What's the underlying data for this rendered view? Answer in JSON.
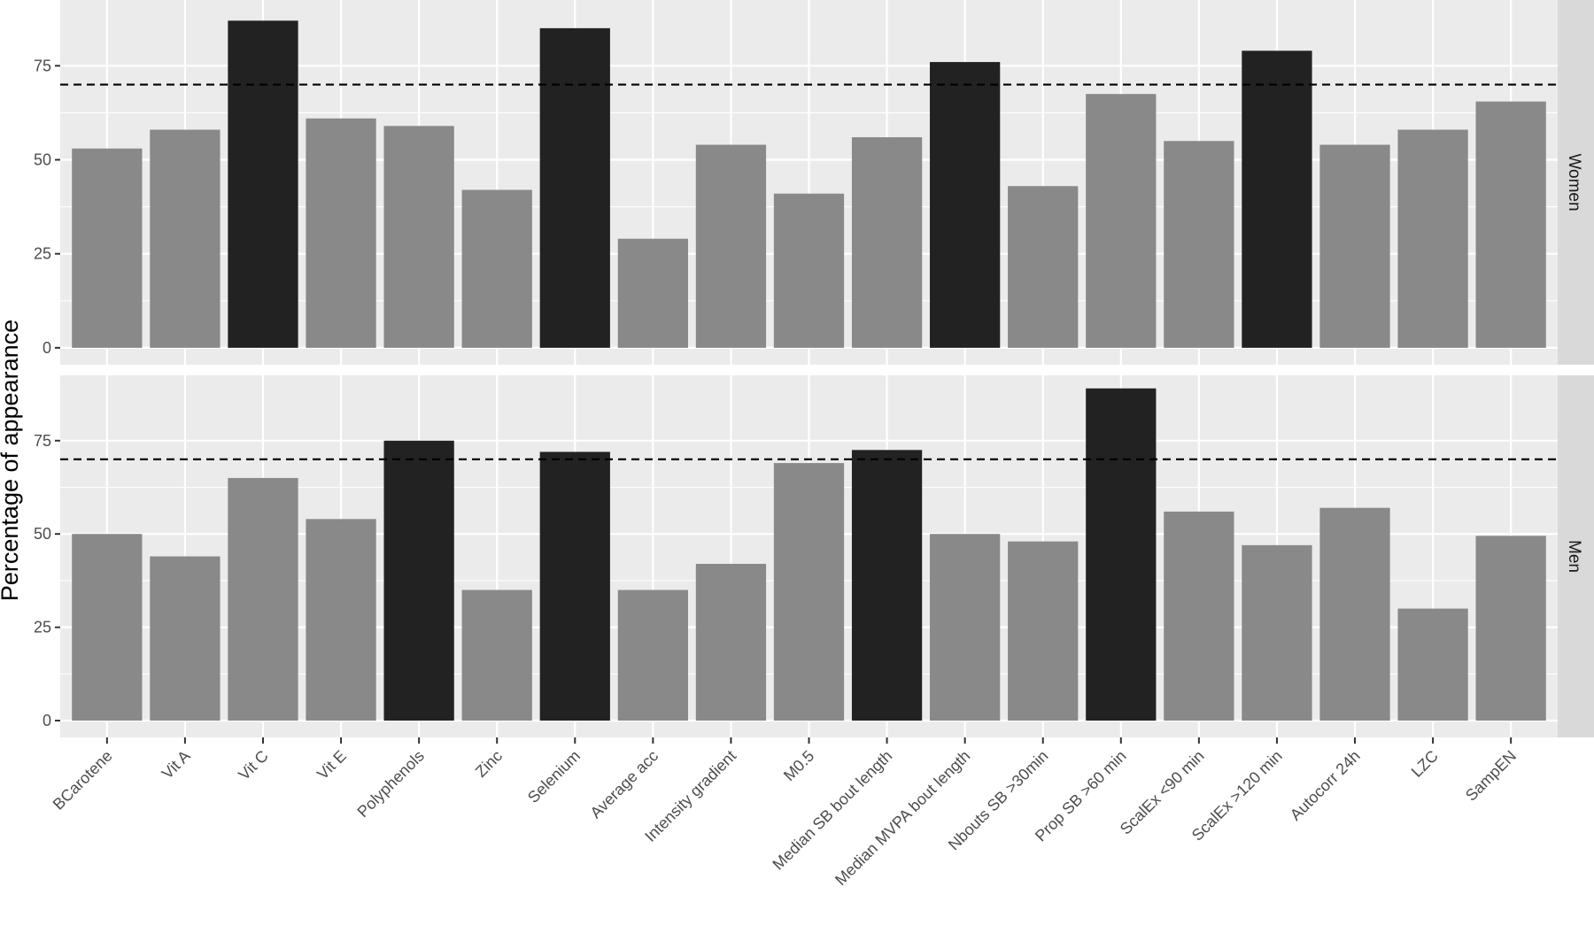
{
  "chart_data": {
    "type": "bar",
    "ylabel": "Percentage of appearance",
    "xlabel": "",
    "ylim": [
      -4.5,
      92.5
    ],
    "yticks": [
      0,
      25,
      50,
      75
    ],
    "threshold": 70,
    "grid": true,
    "colors": {
      "above_threshold": "#222222",
      "below_threshold": "#898989",
      "panel_bg": "#ebebeb",
      "strip_bg": "#d9d9d9",
      "grid": "#ffffff"
    },
    "categories": [
      "BCarotene",
      "Vit A",
      "Vit C",
      "Vit E",
      "Polyphenols",
      "Zinc",
      "Selenium",
      "Average acc",
      "Intensity gradient",
      "M0.5",
      "Median SB bout length",
      "Median MVPA bout length",
      "Nbouts SB >30min",
      "Prop SB >60 min",
      "ScalEx <90 min",
      "ScalEx >120 min",
      "Autocorr 24h",
      "LZC",
      "SampEN"
    ],
    "panels": [
      {
        "facet": "Women",
        "values": [
          53,
          58,
          87,
          61,
          59,
          42,
          85,
          29,
          54,
          41,
          56,
          76,
          43,
          67.5,
          55,
          79,
          54,
          58,
          65.5
        ]
      },
      {
        "facet": "Men",
        "values": [
          50,
          44,
          65,
          54,
          75,
          35,
          72,
          35,
          42,
          69,
          72.5,
          50,
          48,
          89,
          56,
          47,
          57,
          30,
          49.5
        ]
      }
    ]
  }
}
